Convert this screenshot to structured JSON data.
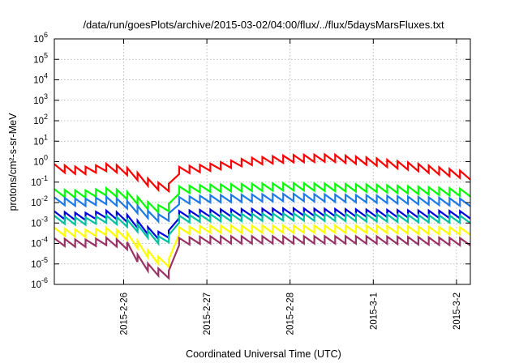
{
  "chart_data": {
    "type": "line",
    "title": "/data/run/goesPlots/archive/2015-03-02/04:00/flux/../flux/5daysMarsFluxes.txt",
    "xlabel": "Coordinated Universal Time (UTC)",
    "ylabel": "protons/cm²-s-sr-MeV",
    "yscale": "log",
    "ylim": [
      1e-06,
      1000000.0
    ],
    "y_ticks": [
      {
        "value": 1e-06,
        "base": "10",
        "exp": "-6"
      },
      {
        "value": 1e-05,
        "base": "10",
        "exp": "-5"
      },
      {
        "value": 0.0001,
        "base": "10",
        "exp": "-4"
      },
      {
        "value": 0.001,
        "base": "10",
        "exp": "-3"
      },
      {
        "value": 0.01,
        "base": "10",
        "exp": "-2"
      },
      {
        "value": 0.1,
        "base": "10",
        "exp": "-1"
      },
      {
        "value": 1.0,
        "base": "10",
        "exp": "0"
      },
      {
        "value": 10.0,
        "base": "10",
        "exp": "1"
      },
      {
        "value": 100.0,
        "base": "10",
        "exp": "2"
      },
      {
        "value": 1000.0,
        "base": "10",
        "exp": "3"
      },
      {
        "value": 10000.0,
        "base": "10",
        "exp": "4"
      },
      {
        "value": 100000.0,
        "base": "10",
        "exp": "5"
      },
      {
        "value": 1000000.0,
        "base": "10",
        "exp": "6"
      }
    ],
    "xlim": [
      "2015-02-25T04:00",
      "2015-03-02T04:00"
    ],
    "x_ticks": [
      {
        "value": "2015-02-26T00:00",
        "label": "2015-2-26"
      },
      {
        "value": "2015-02-27T00:00",
        "label": "2015-2-27"
      },
      {
        "value": "2015-02-28T00:00",
        "label": "2015-2-28"
      },
      {
        "value": "2015-03-01T00:00",
        "label": "2015-3-1"
      },
      {
        "value": "2015-03-02T00:00",
        "label": "2015-3-2"
      }
    ],
    "grid": true,
    "legend": "none",
    "sawtooth_period_hours": 3,
    "series": [
      {
        "color": "#ff0000",
        "points": [
          [
            "2015-02-25T04:00",
            0.5
          ],
          [
            "2015-02-25T12:00",
            0.35
          ],
          [
            "2015-02-25T20:00",
            0.55
          ],
          [
            "2015-02-26T02:00",
            0.3
          ],
          [
            "2015-02-26T06:00",
            0.12
          ],
          [
            "2015-02-26T09:00",
            0.07
          ],
          [
            "2015-02-26T12:00",
            0.05
          ],
          [
            "2015-02-26T14:00",
            0.06
          ],
          [
            "2015-02-26T14:30",
            0.35
          ],
          [
            "2015-02-27T00:00",
            0.5
          ],
          [
            "2015-02-27T12:00",
            1.0
          ],
          [
            "2015-02-28T00:00",
            1.4
          ],
          [
            "2015-02-28T12:00",
            1.5
          ],
          [
            "2015-03-01T00:00",
            1.0
          ],
          [
            "2015-03-01T12:00",
            0.55
          ],
          [
            "2015-03-02T04:00",
            0.2
          ]
        ]
      },
      {
        "color": "#00ff00",
        "points": [
          [
            "2015-02-25T04:00",
            0.03
          ],
          [
            "2015-02-25T12:00",
            0.025
          ],
          [
            "2015-02-25T20:00",
            0.035
          ],
          [
            "2015-02-26T02:00",
            0.02
          ],
          [
            "2015-02-26T06:00",
            0.008
          ],
          [
            "2015-02-26T10:00",
            0.005
          ],
          [
            "2015-02-26T14:00",
            0.006
          ],
          [
            "2015-02-26T14:30",
            0.04
          ],
          [
            "2015-02-27T00:00",
            0.05
          ],
          [
            "2015-02-28T00:00",
            0.06
          ],
          [
            "2015-03-01T00:00",
            0.05
          ],
          [
            "2015-03-02T04:00",
            0.03
          ]
        ]
      },
      {
        "color": "#1e7ae6",
        "points": [
          [
            "2015-02-25T04:00",
            0.012
          ],
          [
            "2015-02-25T12:00",
            0.01
          ],
          [
            "2015-02-25T20:00",
            0.013
          ],
          [
            "2015-02-26T02:00",
            0.007
          ],
          [
            "2015-02-26T06:00",
            0.003
          ],
          [
            "2015-02-26T10:00",
            0.0018
          ],
          [
            "2015-02-26T14:00",
            0.002
          ],
          [
            "2015-02-26T14:30",
            0.012
          ],
          [
            "2015-02-27T00:00",
            0.015
          ],
          [
            "2015-02-28T00:00",
            0.018
          ],
          [
            "2015-03-01T00:00",
            0.015
          ],
          [
            "2015-03-02T04:00",
            0.01
          ]
        ]
      },
      {
        "color": "#0000dd",
        "points": [
          [
            "2015-02-25T04:00",
            0.0025
          ],
          [
            "2015-02-25T12:00",
            0.002
          ],
          [
            "2015-02-25T20:00",
            0.0028
          ],
          [
            "2015-02-26T02:00",
            0.0015
          ],
          [
            "2015-02-26T06:00",
            0.0005
          ],
          [
            "2015-02-26T10:00",
            0.00025
          ],
          [
            "2015-02-26T14:00",
            0.0003
          ],
          [
            "2015-02-26T14:30",
            0.0025
          ],
          [
            "2015-02-27T00:00",
            0.003
          ],
          [
            "2015-02-28T00:00",
            0.0035
          ],
          [
            "2015-03-01T00:00",
            0.003
          ],
          [
            "2015-03-02T04:00",
            0.0025
          ]
        ]
      },
      {
        "color": "#00c0a0",
        "points": [
          [
            "2015-02-25T04:00",
            0.0015
          ],
          [
            "2015-02-25T12:00",
            0.0012
          ],
          [
            "2015-02-25T20:00",
            0.0016
          ],
          [
            "2015-02-26T02:00",
            0.0009
          ],
          [
            "2015-02-26T06:00",
            0.00035
          ],
          [
            "2015-02-26T10:00",
            0.00015
          ],
          [
            "2015-02-26T14:00",
            0.00018
          ],
          [
            "2015-02-26T14:30",
            0.0015
          ],
          [
            "2015-02-27T00:00",
            0.0018
          ],
          [
            "2015-02-28T00:00",
            0.002
          ],
          [
            "2015-03-01T00:00",
            0.0018
          ],
          [
            "2015-03-02T04:00",
            0.0015
          ]
        ]
      },
      {
        "color": "#ffff00",
        "points": [
          [
            "2015-02-25T04:00",
            0.0004
          ],
          [
            "2015-02-25T12:00",
            0.0003
          ],
          [
            "2015-02-25T20:00",
            0.0004
          ],
          [
            "2015-02-26T02:00",
            0.0002
          ],
          [
            "2015-02-26T06:00",
            4e-05
          ],
          [
            "2015-02-26T10:00",
            1.5e-05
          ],
          [
            "2015-02-26T14:00",
            1e-05
          ],
          [
            "2015-02-26T14:30",
            0.0004
          ],
          [
            "2015-02-27T00:00",
            0.0005
          ],
          [
            "2015-02-28T00:00",
            0.0005
          ],
          [
            "2015-03-01T00:00",
            0.0005
          ],
          [
            "2015-03-02T04:00",
            0.0004
          ]
        ]
      },
      {
        "color": "#993366",
        "points": [
          [
            "2015-02-25T04:00",
            0.00012
          ],
          [
            "2015-02-25T12:00",
            0.0001
          ],
          [
            "2015-02-25T20:00",
            0.00013
          ],
          [
            "2015-02-26T02:00",
            7e-05
          ],
          [
            "2015-02-26T05:00",
            1e-05
          ],
          [
            "2015-02-26T10:00",
            4e-06
          ],
          [
            "2015-02-26T14:00",
            2.8e-06
          ],
          [
            "2015-02-26T14:30",
            0.00012
          ],
          [
            "2015-02-27T00:00",
            0.00015
          ],
          [
            "2015-02-28T00:00",
            0.00015
          ],
          [
            "2015-03-01T00:00",
            0.00015
          ],
          [
            "2015-03-02T04:00",
            0.00012
          ]
        ]
      }
    ]
  }
}
